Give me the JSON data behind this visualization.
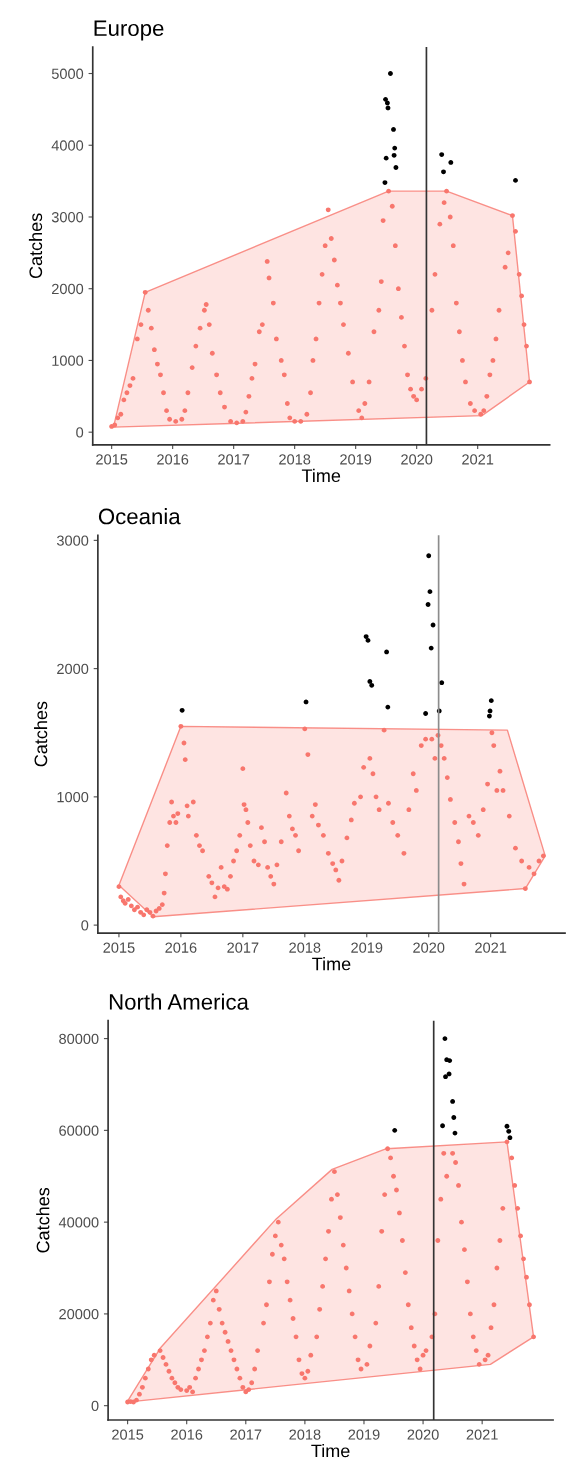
{
  "chart_data": [
    {
      "type": "scatter",
      "title": "Europe",
      "xlabel": "Time",
      "ylabel": "Catches",
      "xlim": [
        2014.69,
        2022.18
      ],
      "ylim": [
        -176,
        5370
      ],
      "xticks": [
        2015,
        2016,
        2017,
        2018,
        2019,
        2020,
        2021
      ],
      "yticks": [
        0,
        1000,
        2000,
        3000,
        4000,
        5000
      ],
      "grid": false,
      "marker": "circle",
      "ref_lines": [
        {
          "axis": "x",
          "value": 2020.16,
          "color": "#333333"
        }
      ],
      "series": [
        {
          "type": "area",
          "marker": "none",
          "color": "#f8766d",
          "x": [
            2015.03,
            2015.55,
            2019.54,
            2020.49,
            2021.57,
            2021.85,
            2021.07
          ],
          "values": [
            70,
            1950,
            3360,
            3360,
            3020,
            700,
            230
          ]
        },
        {
          "color": "#f8766d",
          "x": [
            2015.0,
            2015.05,
            2015.1,
            2015.15,
            2015.2,
            2015.25,
            2015.3,
            2015.35,
            2015.42,
            2015.48,
            2015.55,
            2015.6,
            2015.65,
            2015.7,
            2015.75,
            2015.8,
            2015.85,
            2015.9,
            2015.95,
            2016.05,
            2016.15,
            2016.2,
            2016.25,
            2016.32,
            2016.38,
            2016.45,
            2016.52,
            2016.55,
            2016.6,
            2016.65,
            2016.72,
            2016.78,
            2016.85,
            2016.95,
            2017.05,
            2017.15,
            2017.2,
            2017.25,
            2017.3,
            2017.35,
            2017.42,
            2017.47,
            2017.55,
            2017.58,
            2017.65,
            2017.7,
            2017.78,
            2017.83,
            2017.88,
            2017.92,
            2018.0,
            2018.1,
            2018.2,
            2018.26,
            2018.3,
            2018.35,
            2018.4,
            2018.45,
            2018.5,
            2018.55,
            2018.6,
            2018.65,
            2018.7,
            2018.75,
            2018.8,
            2018.88,
            2018.95,
            2019.05,
            2019.1,
            2019.15,
            2019.22,
            2019.3,
            2019.38,
            2019.42,
            2019.45,
            2019.54,
            2019.6,
            2019.65,
            2019.7,
            2019.75,
            2019.8,
            2019.85,
            2019.9,
            2019.95,
            2020.0,
            2020.08,
            2020.15,
            2020.25,
            2020.3,
            2020.38,
            2020.45,
            2020.49,
            2020.55,
            2020.6,
            2020.65,
            2020.7,
            2020.75,
            2020.8,
            2020.88,
            2020.95,
            2021.05,
            2021.1,
            2021.15,
            2021.2,
            2021.25,
            2021.3,
            2021.35,
            2021.45,
            2021.5,
            2021.57,
            2021.62,
            2021.68,
            2021.72,
            2021.76,
            2021.8,
            2021.85
          ],
          "values": [
            80,
            100,
            200,
            250,
            450,
            550,
            650,
            750,
            1300,
            1500,
            1950,
            1700,
            1450,
            1150,
            950,
            800,
            550,
            300,
            180,
            150,
            180,
            300,
            550,
            900,
            1200,
            1450,
            1700,
            1780,
            1500,
            1100,
            800,
            550,
            350,
            150,
            130,
            150,
            280,
            500,
            750,
            950,
            1400,
            1500,
            2380,
            2150,
            1800,
            1300,
            1000,
            800,
            400,
            200,
            150,
            150,
            250,
            550,
            1000,
            1300,
            1800,
            2200,
            2600,
            3100,
            2700,
            2400,
            2050,
            1800,
            1500,
            1100,
            700,
            300,
            200,
            400,
            700,
            1400,
            1700,
            2100,
            2950,
            3360,
            3150,
            2600,
            2000,
            1600,
            1200,
            800,
            600,
            500,
            450,
            600,
            750,
            1700,
            2200,
            2900,
            3200,
            3360,
            3000,
            2600,
            1800,
            1400,
            1000,
            700,
            400,
            300,
            250,
            300,
            500,
            800,
            1000,
            1300,
            1700,
            2300,
            2500,
            3020,
            2800,
            2200,
            1900,
            1500,
            1200,
            700
          ]
        },
        {
          "color": "#000000",
          "x": [
            2019.57,
            2019.49,
            2019.52,
            2019.53,
            2019.62,
            2019.64,
            2019.5,
            2019.66,
            2019.48,
            2019.63,
            2020.41,
            2020.56,
            2020.44,
            2021.62
          ],
          "values": [
            5000,
            4640,
            4590,
            4520,
            4220,
            3960,
            3820,
            3690,
            3480,
            3860,
            3870,
            3760,
            3630,
            3510
          ]
        }
      ]
    },
    {
      "type": "scatter",
      "title": "Oceania",
      "xlabel": "Time",
      "ylabel": "Catches",
      "xlim": [
        2014.66,
        2022.2
      ],
      "ylim": [
        -62,
        3040
      ],
      "xticks": [
        2015,
        2016,
        2017,
        2018,
        2019,
        2020,
        2021
      ],
      "yticks": [
        0,
        1000,
        2000,
        3000
      ],
      "grid": false,
      "marker": "circle",
      "ref_lines": [
        {
          "axis": "x",
          "value": 2020.16,
          "color": "#8c8c8c"
        }
      ],
      "series": [
        {
          "type": "area",
          "marker": "none",
          "color": "#f8766d",
          "x": [
            2015.0,
            2016.0,
            2021.27,
            2021.88,
            2021.56,
            2015.55
          ],
          "values": [
            310,
            1550,
            1520,
            540,
            285,
            65
          ]
        },
        {
          "color": "#f8766d",
          "x": [
            2015.0,
            2015.03,
            2015.07,
            2015.1,
            2015.15,
            2015.2,
            2015.25,
            2015.3,
            2015.35,
            2015.4,
            2015.45,
            2015.5,
            2015.55,
            2015.6,
            2015.65,
            2015.7,
            2015.73,
            2015.75,
            2015.78,
            2015.82,
            2015.85,
            2015.88,
            2015.92,
            2015.95,
            2016.0,
            2016.05,
            2016.07,
            2016.1,
            2016.12,
            2016.2,
            2016.25,
            2016.3,
            2016.35,
            2016.45,
            2016.5,
            2016.55,
            2016.6,
            2016.65,
            2016.7,
            2016.75,
            2016.8,
            2016.85,
            2016.9,
            2016.95,
            2017.0,
            2017.02,
            2017.05,
            2017.08,
            2017.12,
            2017.18,
            2017.25,
            2017.3,
            2017.35,
            2017.4,
            2017.45,
            2017.5,
            2017.55,
            2017.62,
            2017.7,
            2017.75,
            2017.8,
            2017.85,
            2017.9,
            2018.0,
            2018.05,
            2018.12,
            2018.17,
            2018.22,
            2018.3,
            2018.38,
            2018.45,
            2018.5,
            2018.55,
            2018.6,
            2018.68,
            2018.75,
            2018.8,
            2018.9,
            2018.95,
            2019.05,
            2019.1,
            2019.15,
            2019.2,
            2019.28,
            2019.35,
            2019.42,
            2019.5,
            2019.6,
            2019.68,
            2019.75,
            2019.8,
            2019.88,
            2019.95,
            2020.05,
            2020.1,
            2020.15,
            2020.2,
            2020.25,
            2020.3,
            2020.35,
            2020.42,
            2020.48,
            2020.52,
            2020.57,
            2020.65,
            2020.72,
            2020.8,
            2020.88,
            2020.95,
            2021.02,
            2021.05,
            2021.1,
            2021.15,
            2021.2,
            2021.3,
            2021.4,
            2021.5,
            2021.56,
            2021.62,
            2021.7,
            2021.78,
            2021.85
          ],
          "values": [
            300,
            220,
            190,
            170,
            200,
            150,
            120,
            140,
            100,
            80,
            120,
            100,
            70,
            110,
            130,
            160,
            250,
            400,
            620,
            800,
            960,
            850,
            800,
            870,
            1550,
            1420,
            1290,
            930,
            850,
            960,
            700,
            620,
            580,
            380,
            330,
            220,
            290,
            450,
            300,
            280,
            380,
            500,
            580,
            700,
            1220,
            940,
            900,
            800,
            620,
            500,
            470,
            760,
            650,
            450,
            380,
            320,
            470,
            650,
            1030,
            850,
            750,
            700,
            580,
            1530,
            1330,
            850,
            940,
            780,
            700,
            560,
            480,
            430,
            350,
            500,
            680,
            820,
            950,
            1000,
            1230,
            1300,
            1180,
            1000,
            900,
            1520,
            950,
            800,
            700,
            560,
            900,
            1180,
            1050,
            1400,
            1450,
            1450,
            1300,
            1480,
            1400,
            1300,
            1150,
            980,
            800,
            650,
            480,
            320,
            850,
            800,
            700,
            900,
            1100,
            1500,
            1400,
            1050,
            1200,
            1050,
            850,
            600,
            500,
            285,
            450,
            400,
            500,
            540
          ]
        },
        {
          "color": "#000000",
          "x": [
            2016.02,
            2018.02,
            2018.99,
            2019.02,
            2019.05,
            2019.08,
            2019.32,
            2019.34,
            2020.0,
            2020.02,
            2019.99,
            2020.07,
            2020.04,
            2020.21,
            2019.95,
            2020.17,
            2021.01,
            2020.99,
            2020.98
          ],
          "values": [
            1675,
            1740,
            2250,
            2220,
            1900,
            1870,
            2130,
            1700,
            2880,
            2600,
            2500,
            2340,
            2160,
            1890,
            1650,
            1670,
            1750,
            1670,
            1630
          ]
        }
      ]
    },
    {
      "type": "scatter",
      "title": "North America",
      "xlabel": "Time",
      "ylabel": "Catches",
      "xlim": [
        2014.67,
        2022.2
      ],
      "ylim": [
        -3120,
        83900
      ],
      "xticks": [
        2015,
        2016,
        2017,
        2018,
        2019,
        2020,
        2021
      ],
      "yticks": [
        0,
        20000,
        40000,
        60000,
        80000
      ],
      "grid": false,
      "marker": "circle",
      "ref_lines": [
        {
          "axis": "x",
          "value": 2020.18,
          "color": "#333333"
        }
      ],
      "series": [
        {
          "type": "area",
          "marker": "none",
          "color": "#f8766d",
          "x": [
            2015.0,
            2015.55,
            2017.5,
            2018.46,
            2019.38,
            2021.42,
            2021.87,
            2021.14,
            2015.15
          ],
          "values": [
            1000,
            12500,
            40500,
            51500,
            56000,
            57500,
            15000,
            9000,
            1000
          ]
        },
        {
          "color": "#f8766d",
          "x": [
            2015.0,
            2015.05,
            2015.1,
            2015.15,
            2015.2,
            2015.25,
            2015.3,
            2015.35,
            2015.4,
            2015.45,
            2015.55,
            2015.6,
            2015.65,
            2015.7,
            2015.75,
            2015.8,
            2015.85,
            2015.9,
            2016.0,
            2016.05,
            2016.1,
            2016.15,
            2016.2,
            2016.25,
            2016.3,
            2016.35,
            2016.4,
            2016.45,
            2016.5,
            2016.55,
            2016.6,
            2016.65,
            2016.7,
            2016.75,
            2016.8,
            2016.85,
            2016.9,
            2016.95,
            2017.0,
            2017.05,
            2017.1,
            2017.15,
            2017.2,
            2017.3,
            2017.35,
            2017.4,
            2017.45,
            2017.5,
            2017.55,
            2017.6,
            2017.65,
            2017.7,
            2017.75,
            2017.8,
            2017.85,
            2017.9,
            2017.95,
            2018.0,
            2018.05,
            2018.1,
            2018.2,
            2018.25,
            2018.3,
            2018.35,
            2018.4,
            2018.45,
            2018.5,
            2018.55,
            2018.6,
            2018.65,
            2018.7,
            2018.75,
            2018.8,
            2018.85,
            2018.9,
            2018.95,
            2019.05,
            2019.1,
            2019.2,
            2019.25,
            2019.3,
            2019.35,
            2019.4,
            2019.45,
            2019.5,
            2019.55,
            2019.6,
            2019.65,
            2019.7,
            2019.75,
            2019.8,
            2019.85,
            2019.9,
            2019.95,
            2020.0,
            2020.05,
            2020.15,
            2020.2,
            2020.25,
            2020.3,
            2020.35,
            2020.4,
            2020.5,
            2020.55,
            2020.6,
            2020.65,
            2020.7,
            2020.75,
            2020.8,
            2020.85,
            2020.9,
            2020.95,
            2021.05,
            2021.1,
            2021.15,
            2021.2,
            2021.25,
            2021.3,
            2021.35,
            2021.42,
            2021.5,
            2021.55,
            2021.6,
            2021.65,
            2021.7,
            2021.75,
            2021.8,
            2021.87
          ],
          "values": [
            800,
            900,
            800,
            1200,
            2500,
            4000,
            6000,
            8000,
            10000,
            11000,
            12000,
            10500,
            9000,
            7500,
            6000,
            5000,
            4000,
            3500,
            3300,
            4000,
            3000,
            6000,
            8000,
            10000,
            12000,
            15000,
            18000,
            23000,
            25000,
            21000,
            18000,
            16000,
            14000,
            12000,
            10000,
            8000,
            6000,
            4000,
            3000,
            3500,
            5000,
            8000,
            12000,
            18000,
            22000,
            27000,
            33000,
            37000,
            40000,
            35000,
            32000,
            27000,
            23000,
            19000,
            15000,
            10000,
            7000,
            6000,
            7500,
            11000,
            15000,
            21000,
            26000,
            32000,
            38000,
            45000,
            51000,
            46000,
            41000,
            35000,
            30000,
            25000,
            20000,
            15000,
            10000,
            8000,
            9000,
            13000,
            18000,
            26000,
            38000,
            46000,
            56000,
            54000,
            50000,
            47000,
            42000,
            36000,
            29000,
            22000,
            17000,
            13000,
            10000,
            8000,
            11000,
            12000,
            15000,
            20000,
            36000,
            45000,
            55000,
            50000,
            55000,
            53000,
            48000,
            40000,
            34000,
            27000,
            20000,
            15000,
            12000,
            9000,
            10000,
            11000,
            17000,
            22000,
            30000,
            36000,
            43000,
            57500,
            54000,
            48000,
            43000,
            37000,
            32000,
            28000,
            22000,
            15000
          ]
        },
        {
          "color": "#000000",
          "x": [
            2019.52,
            2020.37,
            2020.4,
            2020.45,
            2020.38,
            2020.44,
            2020.5,
            2020.52,
            2020.33,
            2020.54,
            2021.42,
            2021.45,
            2021.47
          ],
          "values": [
            60000,
            80000,
            75400,
            75200,
            71700,
            72300,
            66300,
            62800,
            61000,
            59400,
            60900,
            59800,
            58400
          ]
        }
      ]
    }
  ]
}
